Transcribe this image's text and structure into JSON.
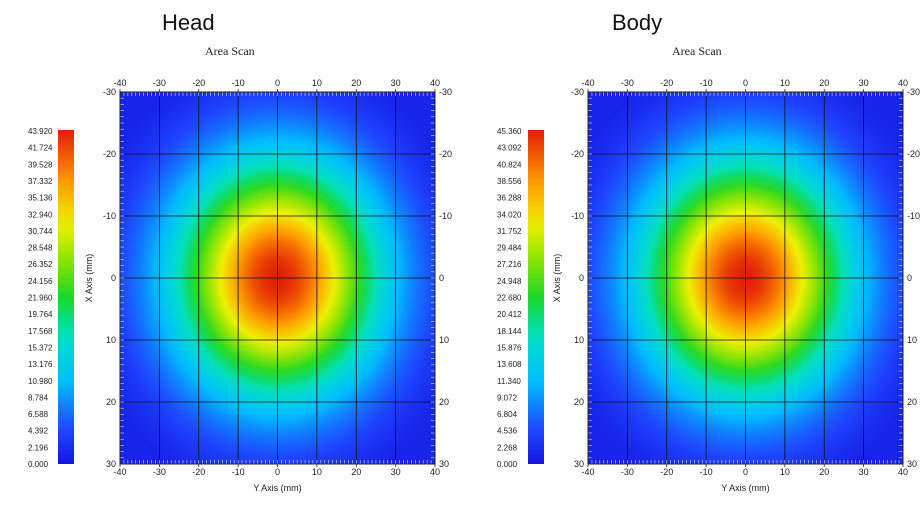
{
  "chart_data": [
    {
      "type": "heatmap",
      "panel_label": "Head",
      "title": "Area Scan",
      "xlabel": "Y Axis (mm)",
      "ylabel": "X Axis (mm)",
      "xlim": [
        -40,
        40
      ],
      "ylim": [
        -30,
        30
      ],
      "x_ticks": [
        -40,
        -30,
        -20,
        -10,
        0,
        10,
        20,
        30,
        40
      ],
      "y_ticks": [
        -30,
        -20,
        -10,
        0,
        10,
        20,
        30
      ],
      "peak": {
        "x": 0,
        "y": 0,
        "value": 43.92
      },
      "colorbar": {
        "min": 0.0,
        "max": 43.92,
        "labels": [
          "43.920",
          "41.724",
          "39.528",
          "37.332",
          "35.136",
          "32.940",
          "30.744",
          "28.548",
          "26.352",
          "24.156",
          "21.960",
          "19.764",
          "17.568",
          "15.372",
          "13.176",
          "10.980",
          "8.784",
          "6.588",
          "4.392",
          "2.196",
          "0.000"
        ]
      },
      "grid": true
    },
    {
      "type": "heatmap",
      "panel_label": "Body",
      "title": "Area Scan",
      "xlabel": "Y Axis (mm)",
      "ylabel": "X Axis (mm)",
      "xlim": [
        -40,
        40
      ],
      "ylim": [
        -30,
        30
      ],
      "x_ticks": [
        -40,
        -30,
        -20,
        -10,
        0,
        10,
        20,
        30,
        40
      ],
      "y_ticks": [
        -30,
        -20,
        -10,
        0,
        10,
        20,
        30
      ],
      "peak": {
        "x": 0,
        "y": 0,
        "value": 45.36
      },
      "colorbar": {
        "min": 0.0,
        "max": 45.36,
        "labels": [
          "45.360",
          "43.092",
          "40.824",
          "38.556",
          "36.288",
          "34.020",
          "31.752",
          "29.484",
          "27.216",
          "24.948",
          "22.680",
          "20.412",
          "18.144",
          "15.876",
          "13.608",
          "11.340",
          "9.072",
          "6.804",
          "4.536",
          "2.268",
          "0.000"
        ]
      },
      "grid": true
    }
  ]
}
